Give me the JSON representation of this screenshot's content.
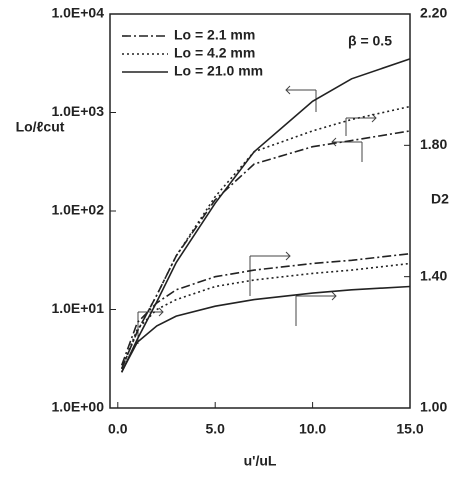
{
  "chart_data": {
    "type": "line",
    "y_label": "Lo/ℓcut",
    "y2_label": "D2",
    "x_label": "u'/uL",
    "annotation": "β = 0.5",
    "x": [
      0.2,
      1,
      2,
      3,
      5,
      7,
      10,
      12,
      15
    ],
    "xlim": [
      -0.4,
      15
    ],
    "xticks": [
      {
        "value": 0,
        "label": "0.0"
      },
      {
        "value": 5,
        "label": "5.0"
      },
      {
        "value": 10,
        "label": "10.0"
      },
      {
        "value": 15,
        "label": "15.0"
      }
    ],
    "ylog": true,
    "ylim": [
      1,
      10000
    ],
    "yticks": [
      {
        "value": 1,
        "label": "1.0E+00"
      },
      {
        "value": 10,
        "label": "1.0E+01"
      },
      {
        "value": 100,
        "label": "1.0E+02"
      },
      {
        "value": 1000,
        "label": "1.0E+03"
      },
      {
        "value": 10000,
        "label": "1.0E+04"
      }
    ],
    "y2lim": [
      1.0,
      2.2
    ],
    "y2ticks": [
      {
        "value": 1.0,
        "label": "1.00"
      },
      {
        "value": 1.4,
        "label": "1.40"
      },
      {
        "value": 1.8,
        "label": "1.80"
      },
      {
        "value": 2.2,
        "label": "2.20"
      }
    ],
    "series": [
      {
        "name": "Lo = 2.1 mm",
        "color": "#222222",
        "dash": "dash-dot",
        "values": [
          2.5,
          6,
          14,
          35,
          130,
          300,
          450,
          520,
          650
        ]
      },
      {
        "name": "Lo = 4.2 mm",
        "color": "#222222",
        "dash": "dotted",
        "values": [
          2.5,
          6,
          14,
          35,
          140,
          400,
          650,
          850,
          1150
        ]
      },
      {
        "name": "Lo = 21.0 mm",
        "color": "#222222",
        "dash": "solid",
        "values": [
          2.3,
          5,
          12,
          30,
          120,
          400,
          1300,
          2200,
          3500
        ]
      },
      {
        "color": "#222222",
        "dash": "dash-dot",
        "axis": "y2",
        "values": [
          1.13,
          1.26,
          1.32,
          1.36,
          1.4,
          1.42,
          1.44,
          1.45,
          1.47
        ]
      },
      {
        "color": "#222222",
        "dash": "dotted",
        "axis": "y2",
        "values": [
          1.12,
          1.24,
          1.3,
          1.33,
          1.37,
          1.39,
          1.41,
          1.42,
          1.44
        ]
      },
      {
        "color": "#222222",
        "dash": "solid",
        "axis": "y2",
        "values": [
          1.11,
          1.2,
          1.25,
          1.28,
          1.31,
          1.33,
          1.35,
          1.36,
          1.37
        ]
      }
    ]
  }
}
